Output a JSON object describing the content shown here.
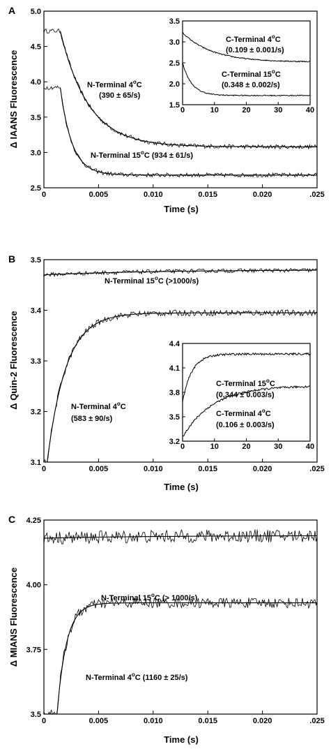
{
  "chart_data": [
    {
      "panel": "A",
      "type": "line",
      "xlabel": "Time (s)",
      "ylabel": "Δ IAANS Fluorescence",
      "xlim": [
        0,
        0.025
      ],
      "ylim": [
        2.5,
        5.0
      ],
      "xticks": [
        0,
        0.005,
        0.01,
        0.015,
        0.02,
        0.025
      ],
      "xtick_labels": [
        "0",
        "0.005",
        "0.010",
        "0.015",
        "0.020",
        ".025"
      ],
      "yticks": [
        2.5,
        3.0,
        3.5,
        4.0,
        4.5,
        5.0
      ],
      "ytick_labels": [
        "2.5",
        "3.0",
        "3.5",
        "4.0",
        "4.5",
        "5.0"
      ],
      "series": [
        {
          "label_prefix": "N-Terminal 4",
          "label_suffix": "C",
          "rate": "(390 ± 65/s)",
          "start": 4.72,
          "plateau": 3.08,
          "k": 390,
          "t0": 0.0015,
          "noise": 0.03
        },
        {
          "label_prefix": "N-Terminal 15",
          "label_suffix": "C (934 ± 61/s)",
          "rate": "",
          "start": 3.92,
          "plateau": 2.68,
          "k": 934,
          "t0": 0.0015,
          "noise": 0.03
        }
      ],
      "inset": {
        "xlim": [
          0,
          40
        ],
        "ylim": [
          1.5,
          3.5
        ],
        "xticks": [
          0,
          10,
          20,
          30,
          40
        ],
        "xtick_labels": [
          "0",
          "10",
          "20",
          "30",
          "40"
        ],
        "yticks": [
          1.5,
          2.0,
          2.5,
          3.0,
          3.5
        ],
        "ytick_labels": [
          "1.5",
          "2.0",
          "2.5",
          "3.0",
          "3.5"
        ],
        "series": [
          {
            "label_prefix": "C-Terminal 4",
            "label_suffix": "C",
            "rate": "(0.109 ± 0.001/s)",
            "start": 3.22,
            "plateau": 2.52,
            "k": 0.109
          },
          {
            "label_prefix": "C-Terminal 15",
            "label_suffix": "C",
            "rate": "(0.348 ± 0.002/s)",
            "start": 2.5,
            "plateau": 1.72,
            "k": 0.348
          }
        ]
      }
    },
    {
      "panel": "B",
      "type": "line",
      "xlabel": "Time (s)",
      "ylabel": "Δ Quin-2 Fluorescence",
      "xlim": [
        0,
        0.025
      ],
      "ylim": [
        3.1,
        3.5
      ],
      "xticks": [
        0,
        0.005,
        0.01,
        0.015,
        0.02,
        0.025
      ],
      "xtick_labels": [
        "0",
        "0.005",
        "0.010",
        "0.015",
        "0.020",
        ".025"
      ],
      "yticks": [
        3.1,
        3.2,
        3.3,
        3.4,
        3.5
      ],
      "ytick_labels": [
        "3.1",
        "3.2",
        "3.3",
        "3.4",
        "3.5"
      ],
      "series": [
        {
          "label_prefix": "N-Terminal 15",
          "label_suffix": "C (>1000/s)",
          "rate": "",
          "start": 3.47,
          "plateau": 3.48,
          "k": 100,
          "t0": 0,
          "noise": 0.004
        },
        {
          "label_prefix": "N-Terminal 4",
          "label_suffix": "C",
          "rate": "(583 ± 90/s)",
          "start": 3.1,
          "plateau": 3.395,
          "k": 583,
          "t0": 0.0003,
          "noise": 0.006
        }
      ],
      "inset": {
        "xlim": [
          0,
          40
        ],
        "ylim": [
          3.2,
          4.4
        ],
        "xticks": [
          0,
          10,
          20,
          30,
          40
        ],
        "xtick_labels": [
          "0",
          "10",
          "20",
          "30",
          "40"
        ],
        "yticks": [
          3.2,
          3.5,
          3.8,
          4.1,
          4.4
        ],
        "ytick_labels": [
          "3.2",
          "3.5",
          "3.8",
          "4.1",
          "4.4"
        ],
        "series": [
          {
            "label_prefix": "C-Terminal 15",
            "label_suffix": "C",
            "rate": "(0.344 ± 0.003/s)",
            "start": 3.68,
            "plateau": 4.27,
            "k": 0.344
          },
          {
            "label_prefix": "C-Terminal 4",
            "label_suffix": "C",
            "rate": "(0.106 ± 0.003/s)",
            "start": 3.25,
            "plateau": 3.88,
            "k": 0.106
          }
        ]
      }
    },
    {
      "panel": "C",
      "type": "line",
      "xlabel": "Time (s)",
      "ylabel": "Δ MIANS Fluorescence",
      "xlim": [
        0,
        0.025
      ],
      "ylim": [
        3.5,
        4.25
      ],
      "xticks": [
        0,
        0.005,
        0.01,
        0.015,
        0.02,
        0.025
      ],
      "xtick_labels": [
        "0",
        "0.005",
        "0.010",
        "0.015",
        "0.020",
        ".025"
      ],
      "yticks": [
        3.5,
        3.75,
        4.0,
        4.25
      ],
      "ytick_labels": [
        "3.5",
        "3.75",
        "4.00",
        "4.25"
      ],
      "series": [
        {
          "label_prefix": "N-Terminal 15",
          "label_suffix": "C (> 1000/s)",
          "rate": "",
          "start": 4.18,
          "plateau": 4.19,
          "k": 100,
          "t0": 0,
          "noise": 0.025
        },
        {
          "label_prefix": "N-Terminal 4",
          "label_suffix": "C (1160 ± 25/s)",
          "rate": "",
          "start": 3.5,
          "plateau": 3.93,
          "k": 1160,
          "t0": 0.0012,
          "noise": 0.02
        }
      ]
    }
  ]
}
